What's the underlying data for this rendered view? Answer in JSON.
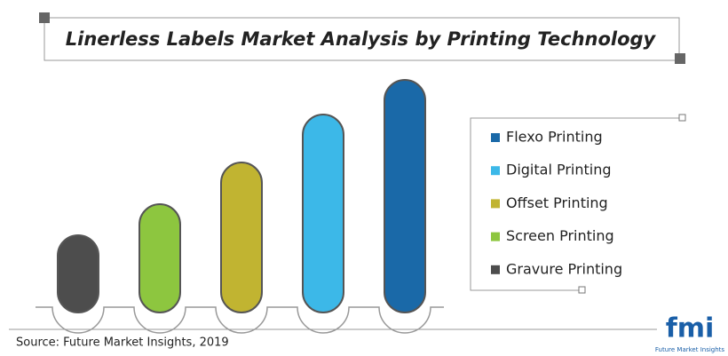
{
  "chart_data": {
    "type": "bar",
    "title": "Linerless Labels Market Analysis by Printing Technology",
    "categories": [
      "Gravure Printing",
      "Screen Printing",
      "Offset Printing",
      "Digital Printing",
      "Flexo Printing"
    ],
    "values": [
      87,
      122,
      169,
      223,
      262
    ],
    "colors": [
      "#4d4d4d",
      "#8dc63f",
      "#c1b431",
      "#3cb8e8",
      "#1a69a8"
    ],
    "source": "Source: Future Market Insights, 2019",
    "logo": {
      "mark": "fmi",
      "name": "Future Market Insights"
    }
  }
}
